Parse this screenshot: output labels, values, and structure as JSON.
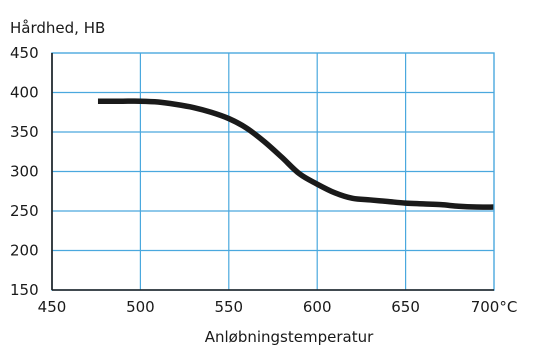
{
  "chart_data": {
    "type": "line",
    "title": "",
    "ylabel": "Hårdhed, HB",
    "xlabel": "Anløbningstemperatur",
    "xlim": [
      450,
      700
    ],
    "ylim": [
      150,
      450
    ],
    "x_ticks": [
      {
        "value": 450,
        "label": "450"
      },
      {
        "value": 500,
        "label": "500"
      },
      {
        "value": 550,
        "label": "550"
      },
      {
        "value": 600,
        "label": "600"
      },
      {
        "value": 650,
        "label": "650"
      },
      {
        "value": 700,
        "label": "700°C"
      }
    ],
    "y_ticks": [
      {
        "value": 150,
        "label": "150"
      },
      {
        "value": 200,
        "label": "200"
      },
      {
        "value": 250,
        "label": "250"
      },
      {
        "value": 300,
        "label": "300"
      },
      {
        "value": 350,
        "label": "350"
      },
      {
        "value": 400,
        "label": "400"
      },
      {
        "value": 450,
        "label": "450"
      }
    ],
    "grid": true,
    "colors": {
      "grid": "#4aa8de",
      "line": "#1a1a1a",
      "axis": "#1a1a1a",
      "text": "#1a1a1a"
    },
    "series": [
      {
        "x": [
          476,
          490,
          500,
          510,
          520,
          530,
          540,
          550,
          560,
          570,
          580,
          590,
          600,
          610,
          620,
          630,
          640,
          650,
          660,
          670,
          680,
          690,
          700
        ],
        "y": [
          389,
          389,
          389,
          388,
          385,
          381,
          375,
          367,
          355,
          338,
          318,
          297,
          284,
          273,
          266,
          264,
          262,
          260,
          259,
          258,
          256,
          255,
          255
        ]
      }
    ]
  }
}
